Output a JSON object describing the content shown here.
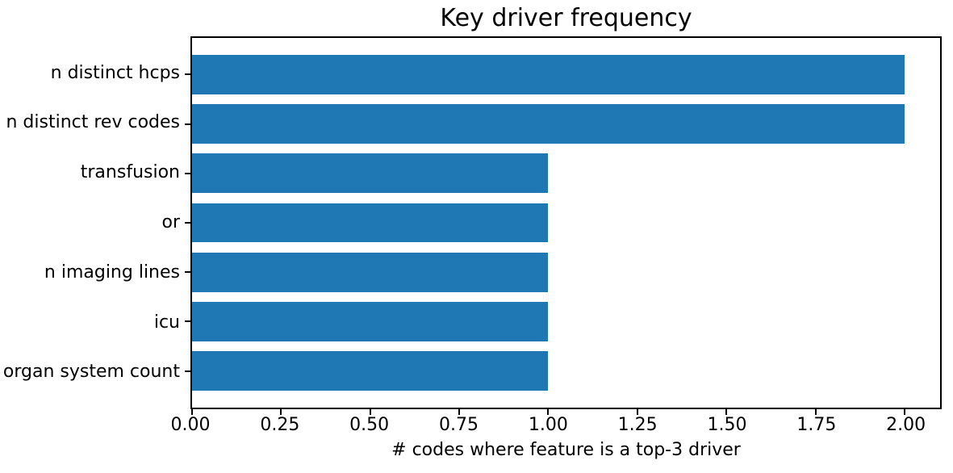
{
  "chart_data": {
    "type": "bar",
    "orientation": "horizontal",
    "title": "Key driver frequency",
    "xlabel": "# codes where feature is a top-3 driver",
    "ylabel": "",
    "categories": [
      "n distinct hcps",
      "n distinct rev codes",
      "transfusion",
      "or",
      "n imaging lines",
      "icu",
      "organ system count"
    ],
    "values": [
      2,
      2,
      1,
      1,
      1,
      1,
      1
    ],
    "xlim": [
      0,
      2.1
    ],
    "xticks": [
      0,
      0.25,
      0.5,
      0.75,
      1,
      1.25,
      1.5,
      1.75,
      2
    ],
    "xtick_labels": [
      "0.00",
      "0.25",
      "0.50",
      "0.75",
      "1.00",
      "1.25",
      "1.50",
      "1.75",
      "2.00"
    ],
    "bar_color": "#1f77b4",
    "spine_color": "#000000",
    "text_color": "#000000",
    "grid": false,
    "legend": null,
    "bar_fraction": 0.8,
    "axis_margin_fraction": 0.05
  }
}
